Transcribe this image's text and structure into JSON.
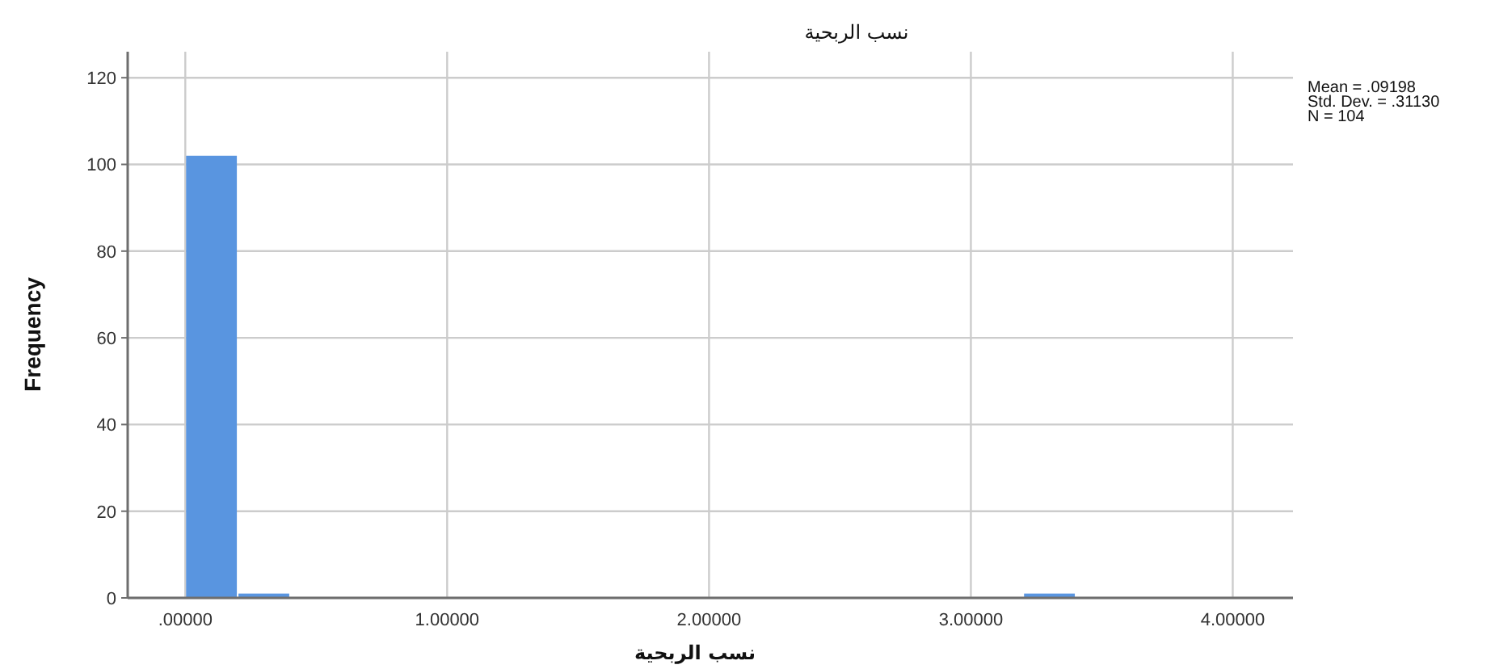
{
  "chart_data": {
    "type": "histogram",
    "title": "نسب الربحية",
    "xlabel": "نسب الربحية",
    "ylabel": "Frequency",
    "bins": [
      0,
      0.2,
      0.4,
      0.6,
      0.8,
      1.0,
      1.2,
      1.4,
      1.6,
      1.8,
      2.0,
      2.2,
      2.4,
      2.6,
      2.8,
      3.0,
      3.2,
      3.4
    ],
    "values": [
      102,
      1,
      0,
      0,
      0,
      0,
      0,
      0,
      0,
      0,
      0,
      0,
      0,
      0,
      0,
      0,
      1
    ],
    "color": "#5995e0",
    "xlim": [
      -0.22,
      4.23
    ],
    "ylim": [
      0,
      126
    ],
    "xticks": [
      {
        "value": 0,
        "label": ".00000"
      },
      {
        "value": 1,
        "label": "1.00000"
      },
      {
        "value": 2,
        "label": "2.00000"
      },
      {
        "value": 3,
        "label": "3.00000"
      },
      {
        "value": 4,
        "label": "4.00000"
      }
    ],
    "yticks": [
      0,
      20,
      40,
      60,
      80,
      100,
      120
    ],
    "grid": true,
    "annotations": [
      "Mean = .09198",
      "Std. Dev. = .31130",
      "N = 104"
    ]
  }
}
